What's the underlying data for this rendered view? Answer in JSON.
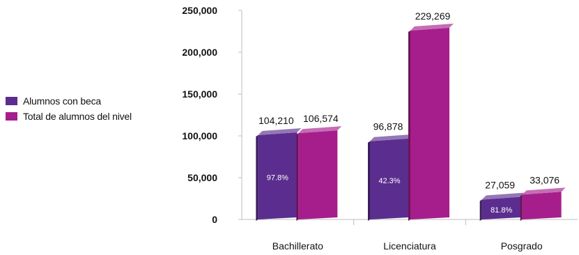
{
  "chart_data": {
    "type": "bar",
    "title": "",
    "xlabel": "",
    "ylabel": "",
    "ylim": [
      0,
      250000
    ],
    "y_ticks": [
      "0",
      "50,000",
      "100,000",
      "150,000",
      "200,000",
      "250,000"
    ],
    "y_tick_values": [
      0,
      50000,
      100000,
      150000,
      200000,
      250000
    ],
    "categories": [
      "Bachillerato",
      "Licenciatura",
      "Posgrado"
    ],
    "series": [
      {
        "name": "Alumnos con beca",
        "color": "#5b2d8e",
        "values": [
          104210,
          96878,
          27059
        ],
        "value_labels": [
          "104,210",
          "96,878",
          "27,059"
        ],
        "percent_labels": [
          "97.8%",
          "42.3%",
          "81.8%"
        ]
      },
      {
        "name": "Total de alumnos del nivel",
        "color": "#a61e8b",
        "values": [
          106574,
          229269,
          33076
        ],
        "value_labels": [
          "106,574",
          "229,269",
          "33,076"
        ]
      }
    ],
    "grid": false,
    "legend_position": "left"
  }
}
